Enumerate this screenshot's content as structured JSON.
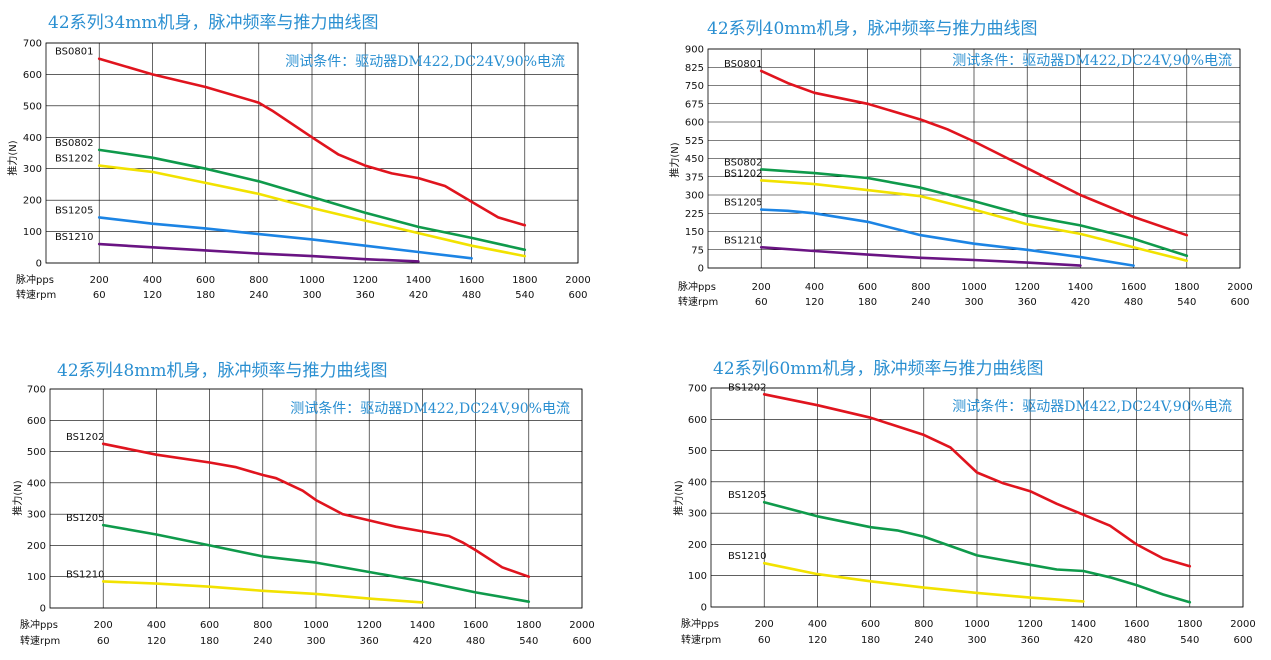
{
  "colors": {
    "title": "#2a8fd1",
    "red": "#e0141e",
    "green": "#0f9a4b",
    "yellow": "#f2e200",
    "blue": "#1c84e4",
    "purple": "#6a1483"
  },
  "chart_data": [
    {
      "type": "line",
      "title": "42系列34mm机身，脉冲频率与推力曲线图",
      "subtitle": "测试条件：驱动器DM422,DC24V,90%电流",
      "ylabel": "推力(N)",
      "x_row_label": "脉冲pps",
      "rpm_row_label": "转速rpm",
      "xlim": [
        0,
        2000
      ],
      "ylim": [
        0,
        700
      ],
      "yticks": [
        0,
        100,
        200,
        300,
        400,
        500,
        600,
        700
      ],
      "xticks": [
        200,
        400,
        600,
        800,
        1000,
        1200,
        1400,
        1600,
        1800,
        2000
      ],
      "rpm_ticks": [
        60,
        120,
        180,
        240,
        300,
        360,
        420,
        480,
        540,
        600
      ],
      "grid": true,
      "series": [
        {
          "name": "BS0801",
          "color": "#e0141e",
          "x": [
            200,
            400,
            600,
            800,
            850,
            1000,
            1100,
            1200,
            1300,
            1400,
            1500,
            1600,
            1700,
            1800
          ],
          "y": [
            650,
            600,
            560,
            510,
            485,
            400,
            345,
            310,
            285,
            270,
            245,
            195,
            145,
            120
          ]
        },
        {
          "name": "BS0802",
          "color": "#0f9a4b",
          "x": [
            200,
            400,
            600,
            800,
            1000,
            1200,
            1400,
            1600,
            1800
          ],
          "y": [
            360,
            335,
            300,
            260,
            210,
            160,
            115,
            80,
            42
          ]
        },
        {
          "name": "BS1202",
          "color": "#f2e200",
          "x": [
            200,
            400,
            600,
            800,
            1000,
            1200,
            1400,
            1600,
            1800
          ],
          "y": [
            310,
            290,
            255,
            220,
            175,
            135,
            95,
            55,
            22
          ]
        },
        {
          "name": "BS1205",
          "color": "#1c84e4",
          "x": [
            200,
            400,
            600,
            800,
            1000,
            1200,
            1400,
            1600
          ],
          "y": [
            145,
            125,
            110,
            92,
            75,
            55,
            35,
            15
          ]
        },
        {
          "name": "BS1210",
          "color": "#6a1483",
          "x": [
            200,
            400,
            600,
            800,
            1000,
            1200,
            1400
          ],
          "y": [
            60,
            50,
            40,
            30,
            22,
            12,
            5
          ]
        }
      ]
    },
    {
      "type": "line",
      "title": "42系列40mm机身，脉冲频率与推力曲线图",
      "subtitle": "测试条件：驱动器DM422,DC24V,90%电流",
      "ylabel": "推力(N)",
      "x_row_label": "脉冲pps",
      "rpm_row_label": "转速rpm",
      "xlim": [
        0,
        2000
      ],
      "ylim": [
        0,
        900
      ],
      "yticks": [
        0,
        75,
        150,
        225,
        300,
        375,
        450,
        525,
        600,
        675,
        750,
        825,
        900
      ],
      "xticks": [
        200,
        400,
        600,
        800,
        1000,
        1200,
        1400,
        1600,
        1800,
        2000
      ],
      "rpm_ticks": [
        60,
        120,
        180,
        240,
        300,
        360,
        420,
        480,
        540,
        600
      ],
      "grid": true,
      "series": [
        {
          "name": "BS0801",
          "color": "#e0141e",
          "x": [
            200,
            300,
            400,
            600,
            800,
            900,
            1000,
            1200,
            1400,
            1600,
            1800
          ],
          "y": [
            810,
            760,
            720,
            675,
            610,
            570,
            520,
            410,
            300,
            210,
            135
          ]
        },
        {
          "name": "BS0802",
          "color": "#0f9a4b",
          "x": [
            200,
            400,
            600,
            800,
            1000,
            1200,
            1400,
            1600,
            1800
          ],
          "y": [
            405,
            390,
            370,
            330,
            275,
            215,
            175,
            120,
            50
          ]
        },
        {
          "name": "BS1202",
          "color": "#f2e200",
          "x": [
            200,
            400,
            600,
            800,
            1000,
            1200,
            1400,
            1600,
            1800
          ],
          "y": [
            360,
            345,
            320,
            295,
            240,
            180,
            140,
            85,
            30
          ]
        },
        {
          "name": "BS1205",
          "color": "#1c84e4",
          "x": [
            200,
            300,
            400,
            600,
            800,
            1000,
            1200,
            1400,
            1600
          ],
          "y": [
            240,
            235,
            225,
            190,
            135,
            100,
            75,
            45,
            10
          ]
        },
        {
          "name": "BS1210",
          "color": "#6a1483",
          "x": [
            200,
            400,
            600,
            800,
            1000,
            1200,
            1400
          ],
          "y": [
            85,
            70,
            55,
            42,
            33,
            22,
            10
          ]
        }
      ]
    },
    {
      "type": "line",
      "title": "42系列48mm机身，脉冲频率与推力曲线图",
      "subtitle": "测试条件：驱动器DM422,DC24V,90%电流",
      "ylabel": "推力(N)",
      "x_row_label": "脉冲pps",
      "rpm_row_label": "转速rpm",
      "xlim": [
        0,
        2000
      ],
      "ylim": [
        0,
        700
      ],
      "yticks": [
        0,
        100,
        200,
        300,
        400,
        500,
        600,
        700
      ],
      "xticks": [
        200,
        400,
        600,
        800,
        1000,
        1200,
        1400,
        1600,
        1800,
        2000
      ],
      "rpm_ticks": [
        60,
        120,
        180,
        240,
        300,
        360,
        420,
        480,
        540,
        600
      ],
      "grid": true,
      "series": [
        {
          "name": "BS1202",
          "color": "#e0141e",
          "x": [
            200,
            400,
            600,
            700,
            800,
            850,
            950,
            1000,
            1100,
            1200,
            1300,
            1400,
            1500,
            1550,
            1600,
            1700,
            1800
          ],
          "y": [
            525,
            490,
            465,
            450,
            425,
            415,
            375,
            345,
            300,
            280,
            260,
            245,
            230,
            210,
            185,
            130,
            100
          ]
        },
        {
          "name": "BS1205",
          "color": "#0f9a4b",
          "x": [
            200,
            400,
            600,
            800,
            1000,
            1200,
            1400,
            1600,
            1800
          ],
          "y": [
            265,
            235,
            200,
            165,
            145,
            115,
            85,
            50,
            20
          ]
        },
        {
          "name": "BS1210",
          "color": "#f2e200",
          "x": [
            200,
            400,
            600,
            800,
            1000,
            1200,
            1400
          ],
          "y": [
            85,
            78,
            68,
            55,
            45,
            30,
            18
          ]
        }
      ]
    },
    {
      "type": "line",
      "title": "42系列60mm机身，脉冲频率与推力曲线图",
      "subtitle": "测试条件：驱动器DM422,DC24V,90%电流",
      "ylabel": "推力(N)",
      "x_row_label": "脉冲pps",
      "rpm_row_label": "转速rpm",
      "xlim": [
        0,
        2000
      ],
      "ylim": [
        0,
        700
      ],
      "yticks": [
        0,
        100,
        200,
        300,
        400,
        500,
        600,
        700
      ],
      "xticks": [
        200,
        400,
        600,
        800,
        1000,
        1200,
        1400,
        1600,
        1800,
        2000
      ],
      "rpm_ticks": [
        60,
        120,
        180,
        240,
        300,
        360,
        420,
        480,
        540,
        600
      ],
      "grid": true,
      "series": [
        {
          "name": "BS1202",
          "color": "#e0141e",
          "x": [
            200,
            400,
            600,
            800,
            900,
            1000,
            1100,
            1200,
            1300,
            1400,
            1500,
            1600,
            1700,
            1800
          ],
          "y": [
            680,
            645,
            605,
            550,
            510,
            430,
            395,
            370,
            330,
            295,
            260,
            200,
            155,
            130
          ]
        },
        {
          "name": "BS1205",
          "color": "#0f9a4b",
          "x": [
            200,
            400,
            600,
            700,
            800,
            900,
            1000,
            1100,
            1200,
            1300,
            1400,
            1500,
            1600,
            1700,
            1800
          ],
          "y": [
            335,
            290,
            255,
            245,
            225,
            195,
            165,
            150,
            135,
            120,
            115,
            95,
            70,
            40,
            15
          ]
        },
        {
          "name": "BS1210",
          "color": "#f2e200",
          "x": [
            200,
            400,
            600,
            800,
            1000,
            1200,
            1400
          ],
          "y": [
            140,
            105,
            82,
            62,
            45,
            30,
            18
          ]
        }
      ]
    }
  ]
}
